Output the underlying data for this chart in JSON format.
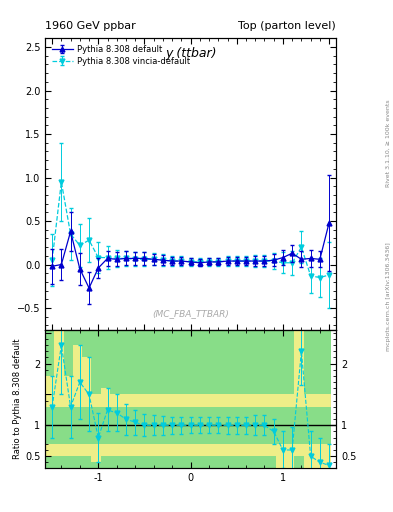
{
  "title_left": "1960 GeV ppbar",
  "title_right": "Top (parton level)",
  "plot_title": "y (ttbar)",
  "ylabel_ratio": "Ratio to Pythia 8.308 default",
  "watermark": "(MC_FBA_TTBAR)",
  "right_label": "mcplots.cern.ch [arXiv:1306.3436]",
  "rivet_label": "Rivet 3.1.10, ≥ 100k events",
  "ylim_main": [
    -0.75,
    2.6
  ],
  "ylim_ratio": [
    0.3,
    2.55
  ],
  "xlim": [
    -1.575,
    1.575
  ],
  "legend1": "Pythia 8.308 default",
  "legend2": "Pythia 8.308 vincia-default",
  "color1": "#0000CD",
  "color2": "#00CCDD",
  "bg_green": "#88DD88",
  "bg_yellow": "#EEEE88",
  "x_main": [
    -1.5,
    -1.4,
    -1.3,
    -1.2,
    -1.1,
    -1.0,
    -0.9,
    -0.8,
    -0.7,
    -0.6,
    -0.5,
    -0.4,
    -0.3,
    -0.2,
    -0.1,
    0.0,
    0.1,
    0.2,
    0.3,
    0.4,
    0.5,
    0.6,
    0.7,
    0.8,
    0.9,
    1.0,
    1.1,
    1.2,
    1.3,
    1.4,
    1.5
  ],
  "y1_main": [
    -0.02,
    0.0,
    0.38,
    -0.05,
    -0.27,
    -0.04,
    0.07,
    0.06,
    0.07,
    0.07,
    0.07,
    0.06,
    0.05,
    0.04,
    0.04,
    0.03,
    0.02,
    0.03,
    0.03,
    0.04,
    0.04,
    0.04,
    0.04,
    0.04,
    0.05,
    0.08,
    0.13,
    0.06,
    0.07,
    0.06,
    0.48
  ],
  "y1_err": [
    0.2,
    0.18,
    0.22,
    0.18,
    0.18,
    0.12,
    0.09,
    0.08,
    0.08,
    0.07,
    0.07,
    0.06,
    0.06,
    0.05,
    0.05,
    0.04,
    0.04,
    0.04,
    0.04,
    0.05,
    0.05,
    0.05,
    0.06,
    0.06,
    0.07,
    0.09,
    0.1,
    0.09,
    0.1,
    0.09,
    0.55
  ],
  "y2_main": [
    0.05,
    0.95,
    0.35,
    0.22,
    0.28,
    0.08,
    0.08,
    0.07,
    0.07,
    0.06,
    0.06,
    0.06,
    0.05,
    0.04,
    0.04,
    0.03,
    0.03,
    0.03,
    0.03,
    0.04,
    0.04,
    0.04,
    0.04,
    0.04,
    0.04,
    0.02,
    0.02,
    0.2,
    -0.13,
    -0.15,
    -0.12
  ],
  "y2_err": [
    0.3,
    0.45,
    0.3,
    0.25,
    0.25,
    0.18,
    0.13,
    0.1,
    0.09,
    0.08,
    0.08,
    0.07,
    0.07,
    0.06,
    0.06,
    0.05,
    0.05,
    0.05,
    0.05,
    0.06,
    0.06,
    0.06,
    0.07,
    0.07,
    0.09,
    0.12,
    0.14,
    0.18,
    0.2,
    0.22,
    0.38
  ],
  "ratio2_x": [
    -1.5,
    -1.4,
    -1.3,
    -1.2,
    -1.1,
    -1.0,
    -0.9,
    -0.8,
    -0.7,
    -0.6,
    -0.5,
    -0.4,
    -0.3,
    -0.2,
    -0.1,
    0.0,
    0.1,
    0.2,
    0.3,
    0.4,
    0.5,
    0.6,
    0.7,
    0.8,
    0.9,
    1.0,
    1.1,
    1.2,
    1.3,
    1.4,
    1.5
  ],
  "ratio2": [
    1.3,
    2.3,
    1.3,
    1.7,
    1.5,
    0.8,
    1.25,
    1.2,
    1.1,
    1.05,
    1.0,
    1.0,
    1.0,
    1.0,
    1.0,
    1.0,
    1.0,
    1.0,
    1.0,
    1.0,
    1.0,
    1.0,
    1.0,
    1.0,
    0.9,
    0.6,
    0.6,
    2.2,
    0.5,
    0.4,
    0.35
  ],
  "ratio2_err": [
    0.5,
    0.8,
    0.5,
    0.6,
    0.6,
    0.4,
    0.35,
    0.3,
    0.25,
    0.2,
    0.18,
    0.16,
    0.15,
    0.14,
    0.14,
    0.13,
    0.13,
    0.13,
    0.13,
    0.14,
    0.14,
    0.14,
    0.16,
    0.16,
    0.2,
    0.3,
    0.38,
    0.55,
    0.4,
    0.4,
    0.35
  ],
  "ratio_bins": [
    -1.575,
    -1.475,
    -1.375,
    -1.275,
    -1.175,
    -1.075,
    -0.975,
    -0.875,
    -0.775,
    -0.675,
    -0.575,
    -0.475,
    -0.375,
    -0.275,
    -0.175,
    -0.075,
    0.025,
    0.125,
    0.225,
    0.325,
    0.425,
    0.525,
    0.625,
    0.725,
    0.825,
    0.925,
    1.025,
    1.125,
    1.225,
    1.325,
    1.425,
    1.525
  ],
  "ratio_bg_yellow_lo": 0.5,
  "ratio_bg_yellow_hi": 1.5,
  "ratio_bg_green_lo": 0.7,
  "ratio_bg_green_hi": 1.3
}
